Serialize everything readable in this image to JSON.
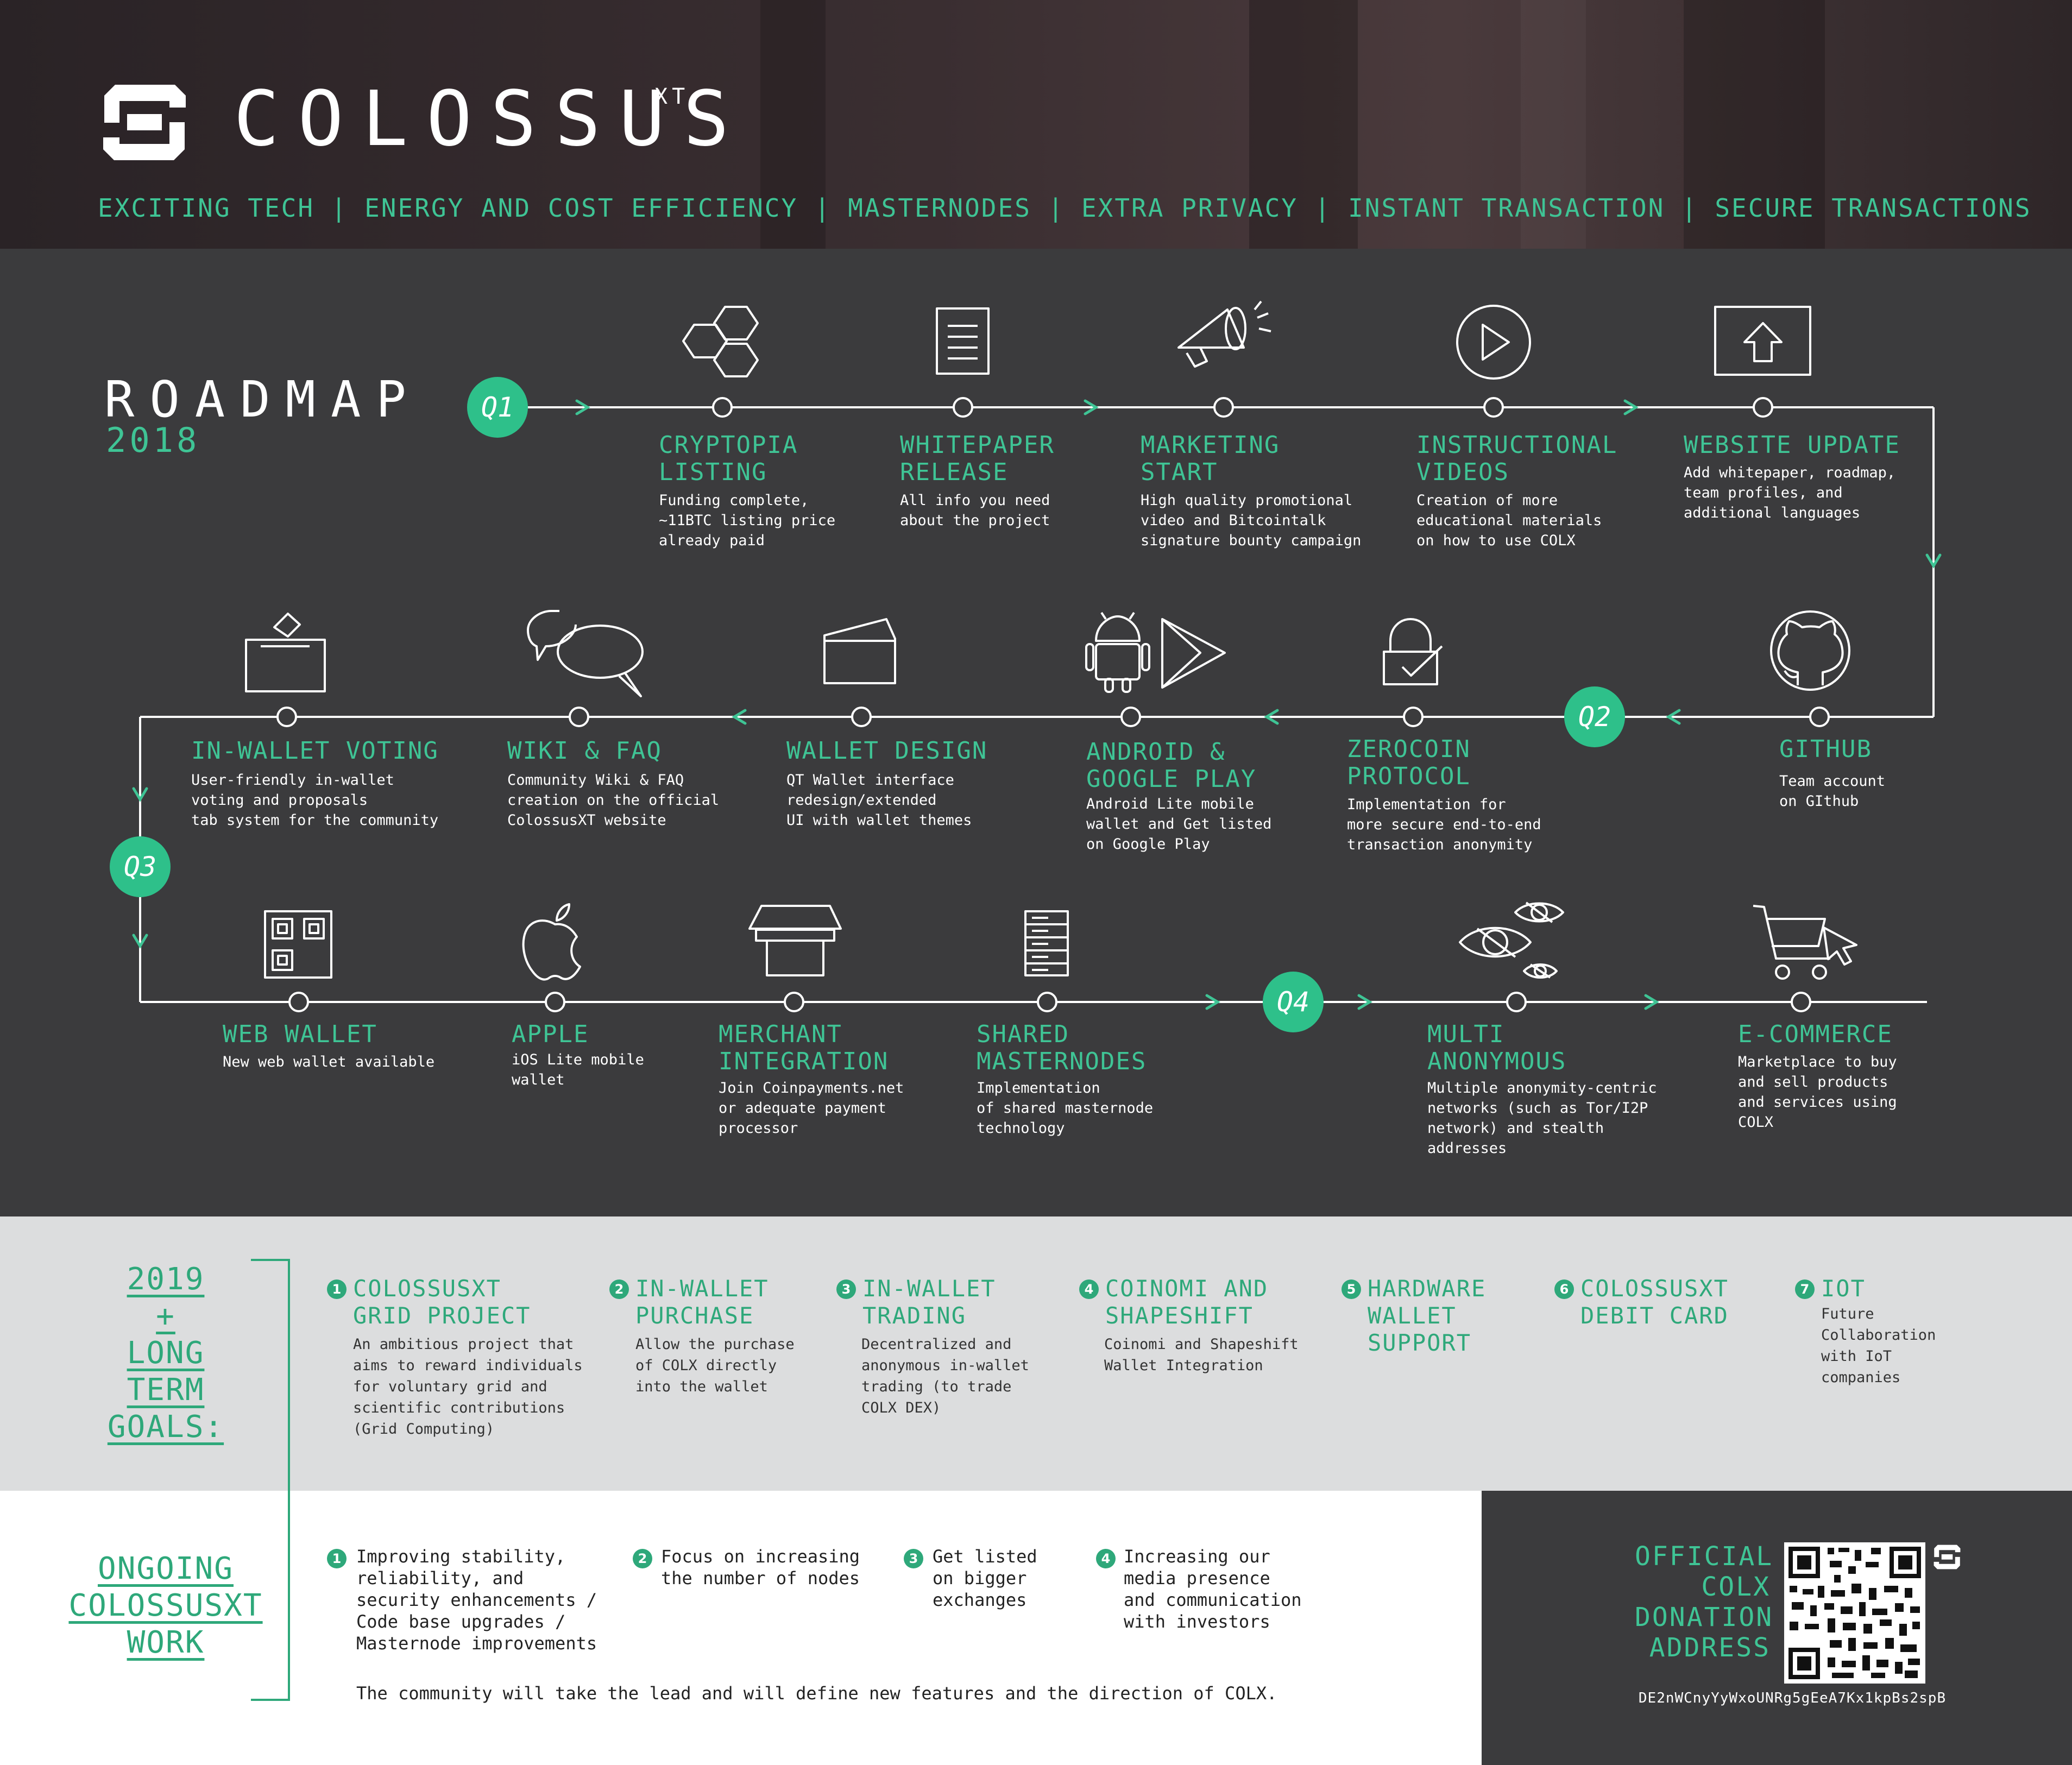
{
  "header": {
    "brand": "COLOSSUS",
    "brand_sup": "XT",
    "tagline": "EXCITING TECH | ENERGY AND COST EFFICIENCY | MASTERNODES | EXTRA PRIVACY | INSTANT TRANSACTION | SECURE TRANSACTIONS"
  },
  "roadmap": {
    "title": "ROADMAP",
    "year": "2018",
    "quarters": [
      "Q1",
      "Q2",
      "Q3",
      "Q4"
    ],
    "milestones": [
      {
        "title": "CRYPTOPIA\nLISTING",
        "desc": "Funding complete,\n~11BTC listing price\nalready paid",
        "icon": "hexagons-icon"
      },
      {
        "title": "WHITEPAPER\nRELEASE",
        "desc": "All info you need\nabout the project",
        "icon": "document-icon"
      },
      {
        "title": "MARKETING\nSTART",
        "desc": "High quality promotional\nvideo and Bitcointalk\nsignature bounty campaign",
        "icon": "megaphone-icon"
      },
      {
        "title": "INSTRUCTIONAL\nVIDEOS",
        "desc": "Creation of more\neducational materials\non how to use COLX",
        "icon": "play-icon"
      },
      {
        "title": "WEBSITE UPDATE",
        "desc": "Add whitepaper, roadmap,\nteam profiles, and\nadditional languages",
        "icon": "upload-icon"
      },
      {
        "title": "GITHUB",
        "desc": "Team account\non GIthub",
        "icon": "github-icon"
      },
      {
        "title": "ZEROCOIN\nPROTOCOL",
        "desc": "Implementation for\nmore secure end-to-end\ntransaction anonymity",
        "icon": "lock-icon"
      },
      {
        "title": "ANDROID &\nGOOGLE PLAY",
        "desc": "Android Lite mobile\nwallet and Get listed\non Google Play",
        "icon": "android-icon"
      },
      {
        "title": "WALLET DESIGN",
        "desc": "QT Wallet interface\nredesign/extended\nUI with wallet themes",
        "icon": "wallet-icon"
      },
      {
        "title": "WIKI & FAQ",
        "desc": "Community Wiki & FAQ\ncreation on the official\nColossusXT website",
        "icon": "chat-icon"
      },
      {
        "title": "IN-WALLET VOTING",
        "desc": "User-friendly in-wallet\nvoting and proposals\ntab system for the community",
        "icon": "ballot-icon"
      },
      {
        "title": "WEB WALLET",
        "desc": "New web wallet available",
        "icon": "qr-icon"
      },
      {
        "title": "APPLE",
        "desc": "iOS Lite mobile\nwallet",
        "icon": "apple-icon"
      },
      {
        "title": "MERCHANT\nINTEGRATION",
        "desc": "Join Coinpayments.net\nor adequate payment\nprocessor",
        "icon": "store-icon"
      },
      {
        "title": "SHARED\nMASTERNODES",
        "desc": "Implementation\nof shared masternode\ntechnology",
        "icon": "server-icon"
      },
      {
        "title": "MULTI\nANONYMOUS",
        "desc": "Multiple anonymity-centric\nnetworks (such as Tor/I2P\nnetwork) and stealth\naddresses",
        "icon": "eyes-icon"
      },
      {
        "title": "E-COMMERCE",
        "desc": "Marketplace to buy\nand sell products\nand services using\nCOLX",
        "icon": "cart-icon"
      }
    ]
  },
  "goals": {
    "heading": [
      "2019",
      "+",
      "LONG",
      "TERM",
      "GOALS:"
    ],
    "items": [
      {
        "num": "1",
        "title": "COLOSSUSXT\nGRID PROJECT",
        "desc": "An ambitious project that\naims to reward individuals\nfor voluntary grid and\nscientific contributions\n(Grid Computing)"
      },
      {
        "num": "2",
        "title": "IN-WALLET\nPURCHASE",
        "desc": "Allow the purchase\nof COLX directly\ninto the wallet"
      },
      {
        "num": "3",
        "title": "IN-WALLET\nTRADING",
        "desc": "Decentralized and\nanonymous in-wallet\ntrading (to trade\nCOLX DEX)"
      },
      {
        "num": "4",
        "title": "COINOMI AND\nSHAPESHIFT",
        "desc": "Coinomi and Shapeshift\nWallet Integration"
      },
      {
        "num": "5",
        "title": "HARDWARE\nWALLET\nSUPPORT",
        "desc": ""
      },
      {
        "num": "6",
        "title": "COLOSSUSXT\nDEBIT CARD",
        "desc": ""
      },
      {
        "num": "7",
        "title": "IOT",
        "desc": "Future\nCollaboration\nwith IoT\ncompanies"
      }
    ]
  },
  "ongoing": {
    "heading": [
      "ONGOING",
      "COLOSSUSXT",
      "WORK"
    ],
    "items": [
      {
        "num": "1",
        "text": "Improving stability,\nreliability, and\nsecurity enhancements /\nCode base upgrades /\nMasternode improvements"
      },
      {
        "num": "2",
        "text": "Focus on increasing\nthe number of nodes"
      },
      {
        "num": "3",
        "text": "Get listed\non bigger\nexchanges"
      },
      {
        "num": "4",
        "text": "Increasing our\nmedia presence\nand communication\nwith investors"
      }
    ],
    "footer": "The community will take the lead and will define new features and the direction of COLX."
  },
  "donation": {
    "title": "OFFICIAL\nCOLX\nDONATION\nADDRESS",
    "address": "DE2nWCnyYyWxoUNRg5gEeA7Kx1kpBs2spB"
  },
  "colors": {
    "accent": "#3fc495",
    "dark_bg": "#3b3b3d",
    "badge": "#2ec08a",
    "goals_bg": "#dcddde"
  }
}
